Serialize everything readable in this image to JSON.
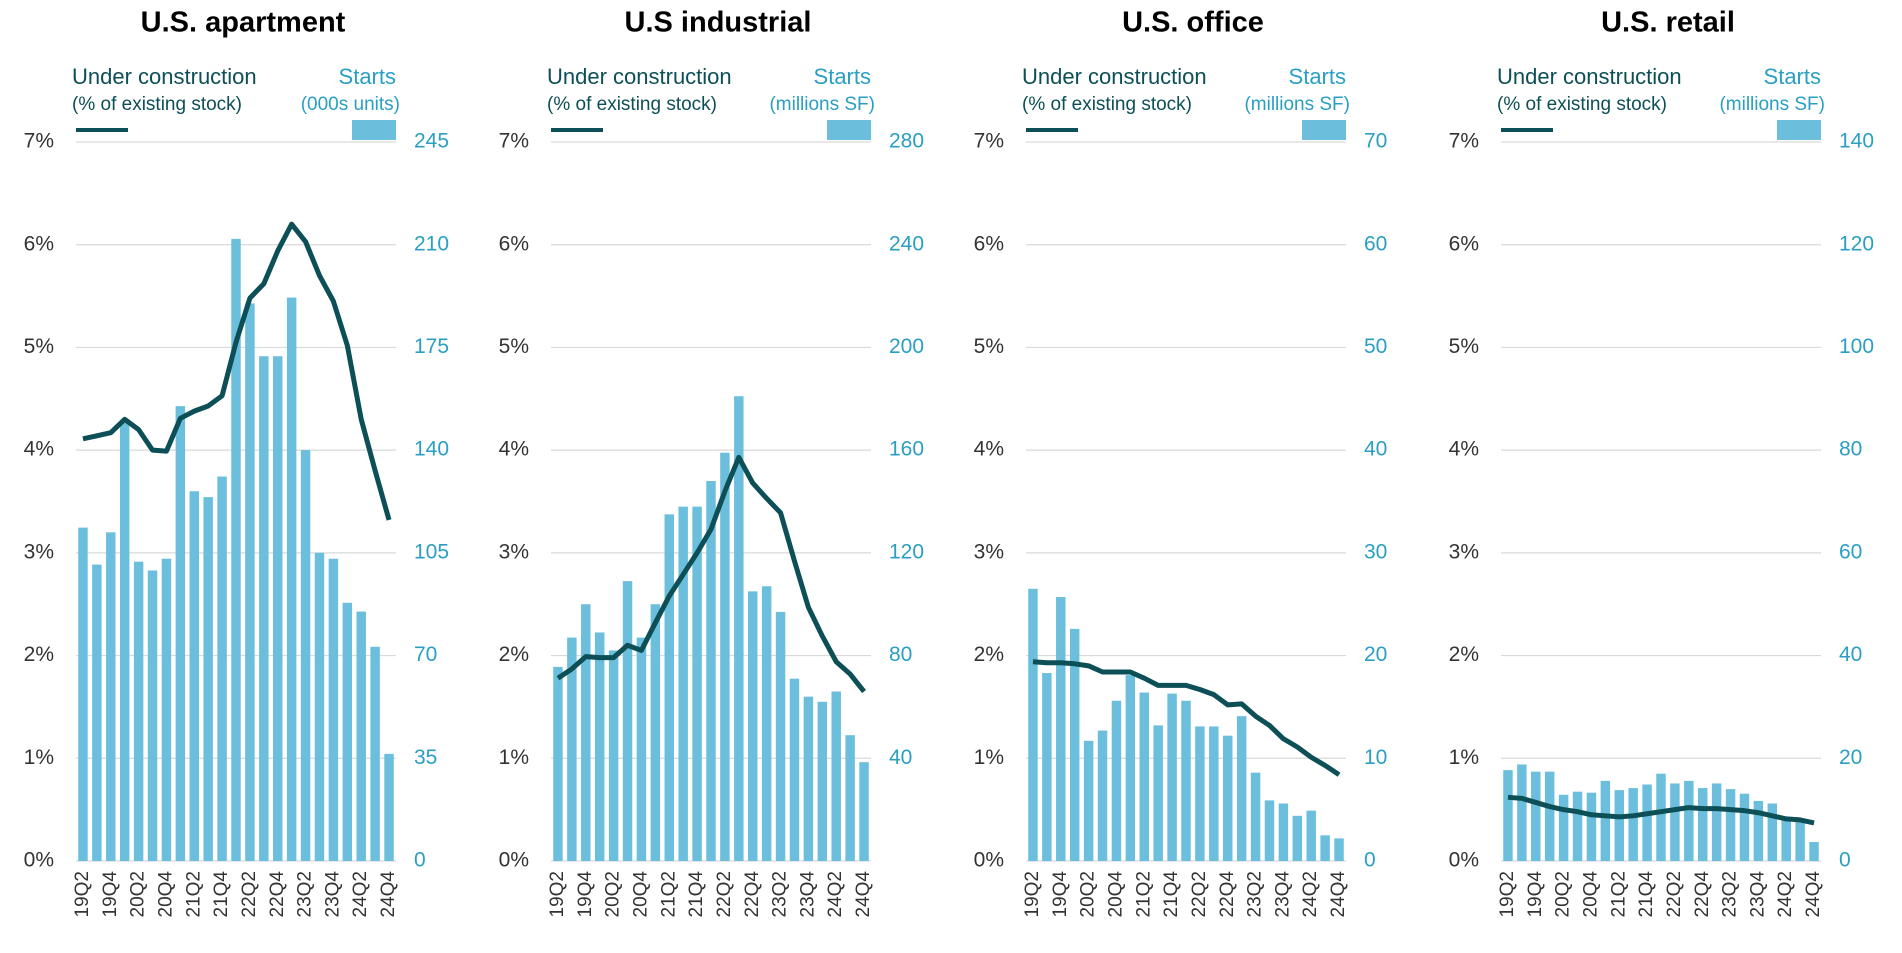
{
  "chart_data": [
    {
      "type": "combo",
      "title": "U.S. apartment",
      "categories": [
        "19Q2",
        null,
        "19Q4",
        null,
        "20Q2",
        null,
        "20Q4",
        null,
        "21Q2",
        null,
        "21Q4",
        null,
        "22Q2",
        null,
        "22Q4",
        null,
        "23Q2",
        null,
        "23Q4",
        null,
        "24Q2",
        null,
        "24Q4"
      ],
      "series": [
        {
          "name": "Under construction",
          "unit": "(% of existing stock)",
          "type": "line",
          "color": "#0d4f57",
          "values": [
            4.11,
            4.14,
            4.17,
            4.3,
            4.2,
            4.0,
            3.99,
            4.31,
            4.38,
            4.43,
            4.53,
            5.05,
            5.48,
            5.62,
            5.94,
            6.2,
            6.03,
            5.7,
            5.45,
            5.02,
            4.3,
            3.8,
            3.32
          ]
        },
        {
          "name": "Starts",
          "unit": "(000s units)",
          "type": "bar",
          "axis": "y2",
          "color": "#6bbfdc",
          "values": [
            113.6,
            101,
            112,
            150,
            102,
            99,
            103,
            155,
            126,
            124,
            131,
            212,
            190,
            172,
            172,
            192,
            140,
            105,
            103,
            88,
            85,
            73,
            36.5
          ]
        }
      ],
      "ylim": [
        0,
        7
      ],
      "yticks": [
        {
          "value": 0,
          "label": "0%"
        },
        {
          "value": 1,
          "label": "1%"
        },
        {
          "value": 2,
          "label": "2%"
        },
        {
          "value": 3,
          "label": "3%"
        },
        {
          "value": 4,
          "label": "4%"
        },
        {
          "value": 5,
          "label": "5%"
        },
        {
          "value": 6,
          "label": "6%"
        },
        {
          "value": 7,
          "label": "7%"
        }
      ],
      "y2lim": [
        0,
        245
      ],
      "y2ticks": [
        0,
        35,
        70,
        105,
        140,
        175,
        210,
        245
      ],
      "grid": true
    },
    {
      "type": "combo",
      "title": "U.S industrial",
      "categories": [
        "19Q2",
        null,
        "19Q4",
        null,
        "20Q2",
        null,
        "20Q4",
        null,
        "21Q2",
        null,
        "21Q4",
        null,
        "22Q2",
        null,
        "22Q4",
        null,
        "23Q2",
        null,
        "23Q4",
        null,
        "24Q2",
        null,
        "24Q4"
      ],
      "series": [
        {
          "name": "Under construction",
          "unit": "(% of existing stock)",
          "type": "line",
          "color": "#0d4f57",
          "values": [
            1.78,
            1.87,
            1.99,
            1.98,
            1.98,
            2.1,
            2.05,
            2.32,
            2.58,
            2.79,
            3.0,
            3.23,
            3.6,
            3.93,
            3.68,
            3.53,
            3.39,
            2.92,
            2.47,
            2.19,
            1.94,
            1.82,
            1.65
          ]
        },
        {
          "name": "Starts",
          "unit": "(millions SF)",
          "type": "bar",
          "axis": "y2",
          "color": "#6bbfdc",
          "values": [
            75.6,
            87,
            100,
            89,
            82,
            109,
            87,
            100,
            135,
            138,
            138,
            148,
            159,
            181,
            105,
            107,
            97,
            71,
            64,
            62,
            66,
            49,
            38.5
          ]
        }
      ],
      "ylim": [
        0,
        7
      ],
      "yticks": [
        {
          "value": 0,
          "label": "0%"
        },
        {
          "value": 1,
          "label": "1%"
        },
        {
          "value": 2,
          "label": "2%"
        },
        {
          "value": 3,
          "label": "3%"
        },
        {
          "value": 4,
          "label": "4%"
        },
        {
          "value": 5,
          "label": "5%"
        },
        {
          "value": 6,
          "label": "6%"
        },
        {
          "value": 7,
          "label": "7%"
        }
      ],
      "y2lim": [
        0,
        280
      ],
      "y2ticks": [
        40,
        80,
        120,
        160,
        200,
        240,
        280
      ],
      "grid": true
    },
    {
      "type": "combo",
      "title": "U.S. office",
      "categories": [
        "19Q2",
        null,
        "19Q4",
        null,
        "20Q2",
        null,
        "20Q4",
        null,
        "21Q2",
        null,
        "21Q4",
        null,
        "22Q2",
        null,
        "22Q4",
        null,
        "23Q2",
        null,
        "23Q4",
        null,
        "24Q2",
        null,
        "24Q4"
      ],
      "series": [
        {
          "name": "Under construction",
          "unit": "(% of existing stock)",
          "type": "line",
          "color": "#0d4f57",
          "values": [
            1.94,
            1.93,
            1.93,
            1.92,
            1.9,
            1.84,
            1.84,
            1.84,
            1.78,
            1.71,
            1.71,
            1.71,
            1.67,
            1.62,
            1.52,
            1.53,
            1.41,
            1.32,
            1.19,
            1.11,
            1.01,
            0.93,
            0.84
          ]
        },
        {
          "name": "Starts",
          "unit": "(millions SF)",
          "type": "bar",
          "axis": "y2",
          "color": "#6bbfdc",
          "values": [
            26.5,
            18.3,
            25.7,
            22.6,
            11.7,
            12.7,
            15.6,
            18.1,
            16.4,
            13.2,
            16.3,
            15.6,
            13.1,
            13.1,
            12.2,
            14.1,
            8.6,
            5.9,
            5.6,
            4.4,
            4.9,
            2.5,
            2.2
          ]
        }
      ],
      "ylim": [
        0,
        7
      ],
      "yticks": [
        {
          "value": 0,
          "label": "0%"
        },
        {
          "value": 1,
          "label": "1%"
        },
        {
          "value": 2,
          "label": "2%"
        },
        {
          "value": 3,
          "label": "3%"
        },
        {
          "value": 4,
          "label": "4%"
        },
        {
          "value": 5,
          "label": "5%"
        },
        {
          "value": 6,
          "label": "6%"
        },
        {
          "value": 7,
          "label": "7%"
        }
      ],
      "y2lim": [
        0,
        70
      ],
      "y2ticks": [
        0,
        10,
        20,
        30,
        40,
        50,
        60,
        70
      ],
      "grid": true
    },
    {
      "type": "combo",
      "title": "U.S. retail",
      "categories": [
        "19Q2",
        null,
        "19Q4",
        null,
        "20Q2",
        null,
        "20Q4",
        null,
        "21Q2",
        null,
        "21Q4",
        null,
        "22Q2",
        null,
        "22Q4",
        null,
        "23Q2",
        null,
        "23Q4",
        null,
        "24Q2",
        null,
        "24Q4"
      ],
      "series": [
        {
          "name": "Under construction",
          "unit": "(% of existing stock)",
          "type": "line",
          "color": "#0d4f57",
          "values": [
            0.62,
            0.61,
            0.57,
            0.53,
            0.5,
            0.48,
            0.45,
            0.44,
            0.43,
            0.44,
            0.46,
            0.48,
            0.5,
            0.52,
            0.51,
            0.51,
            0.5,
            0.49,
            0.47,
            0.44,
            0.41,
            0.4,
            0.37
          ]
        },
        {
          "name": "Starts",
          "unit": "(millions SF)",
          "type": "bar",
          "axis": "y2",
          "color": "#6bbfdc",
          "values": [
            17.7,
            18.8,
            17.4,
            17.4,
            12.9,
            13.5,
            13.3,
            15.6,
            13.8,
            14.2,
            14.9,
            17,
            15.1,
            15.6,
            14.2,
            15.1,
            14,
            13.1,
            11.7,
            11.2,
            8,
            7.6,
            3.7
          ]
        }
      ],
      "ylim": [
        0,
        7
      ],
      "yticks": [
        {
          "value": 0,
          "label": "0%"
        },
        {
          "value": 1,
          "label": "1%"
        },
        {
          "value": 2,
          "label": "2%"
        },
        {
          "value": 3,
          "label": "3%"
        },
        {
          "value": 4,
          "label": "4%"
        },
        {
          "value": 5,
          "label": "5%"
        },
        {
          "value": 6,
          "label": "6%"
        },
        {
          "value": 7,
          "label": "7%"
        }
      ],
      "y2lim": [
        0,
        140
      ],
      "y2ticks": [
        0,
        20,
        40,
        60,
        80,
        100,
        120,
        140
      ],
      "grid": true
    }
  ]
}
